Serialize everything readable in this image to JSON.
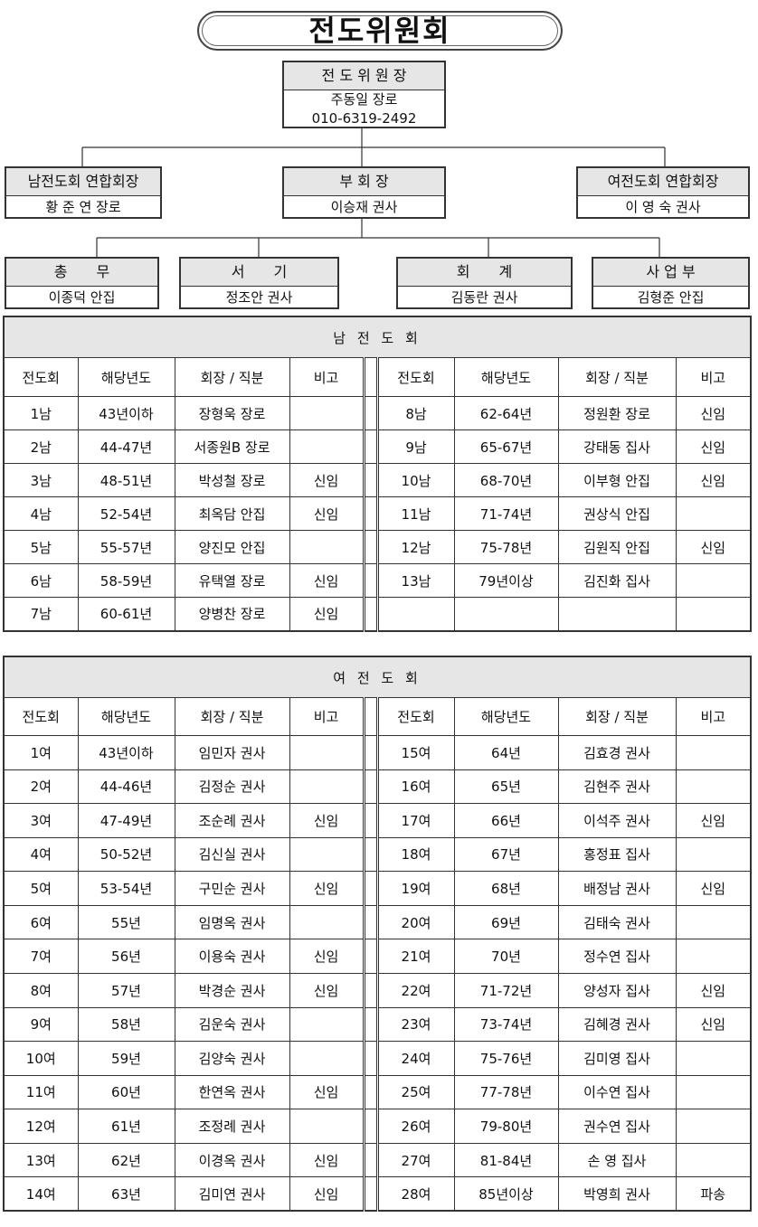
{
  "title": "전도위원회",
  "org": {
    "chair": {
      "role": "전 도 위 원 장",
      "name": "주동일 장로",
      "phone": "010-6319-2492"
    },
    "men_president": {
      "role": "남전도회 연합회장",
      "name": "황 준 연 장로"
    },
    "vice": {
      "role": "부 회 장",
      "name": "이승재 권사"
    },
    "women_president": {
      "role": "여전도회 연합회장",
      "name": "이 영 숙 권사"
    },
    "staff": [
      {
        "role": "총　　무",
        "name": "이종덕 안집"
      },
      {
        "role": "서　　기",
        "name": "정조안 권사"
      },
      {
        "role": "회　　계",
        "name": "김동란 권사"
      },
      {
        "role": "사 업 부",
        "name": "김형준 안집"
      }
    ]
  },
  "tables": [
    {
      "title": "남 전 도 회",
      "headers": [
        "전도회",
        "해당년도",
        "회장 / 직분",
        "비고"
      ],
      "rows": [
        {
          "group": "1남",
          "years": "43년이하",
          "name": "장형욱 장로"
        },
        {
          "group": "2남",
          "years": "44-47년",
          "name": "서종원B 장로"
        },
        {
          "group": "3남",
          "years": "48-51년",
          "name": "박성철 장로",
          "note": "신임"
        },
        {
          "group": "4남",
          "years": "52-54년",
          "name": "최옥담 안집",
          "note": "신임"
        },
        {
          "group": "5남",
          "years": "55-57년",
          "name": "양진모 안집"
        },
        {
          "group": "6남",
          "years": "58-59년",
          "name": "유택열 장로",
          "note": "신임"
        },
        {
          "group": "7남",
          "years": "60-61년",
          "name": "양병찬 장로",
          "note": "신임"
        },
        {
          "group": "8남",
          "years": "62-64년",
          "name": "정원환 장로",
          "note": "신임"
        },
        {
          "group": "9남",
          "years": "65-67년",
          "name": "강태동 집사",
          "note": "신임"
        },
        {
          "group": "10남",
          "years": "68-70년",
          "name": "이부형 안집",
          "note": "신임"
        },
        {
          "group": "11남",
          "years": "71-74년",
          "name": "권상식 안집"
        },
        {
          "group": "12남",
          "years": "75-78년",
          "name": "김원직 안집",
          "note": "신임"
        },
        {
          "group": "13남",
          "years": "79년이상",
          "name": "김진화 집사"
        }
      ]
    },
    {
      "title": "여 전 도 회",
      "headers": [
        "전도회",
        "해당년도",
        "회장 / 직분",
        "비고"
      ],
      "rows": [
        {
          "group": "1여",
          "years": "43년이하",
          "name": "임민자 권사"
        },
        {
          "group": "2여",
          "years": "44-46년",
          "name": "김정순 권사"
        },
        {
          "group": "3여",
          "years": "47-49년",
          "name": "조순례 권사",
          "note": "신임"
        },
        {
          "group": "4여",
          "years": "50-52년",
          "name": "김신실 권사"
        },
        {
          "group": "5여",
          "years": "53-54년",
          "name": "구민순 권사",
          "note": "신임"
        },
        {
          "group": "6여",
          "years": "55년",
          "name": "임명옥 권사"
        },
        {
          "group": "7여",
          "years": "56년",
          "name": "이용숙 권사",
          "note": "신임"
        },
        {
          "group": "8여",
          "years": "57년",
          "name": "박경순 권사",
          "note": "신임"
        },
        {
          "group": "9여",
          "years": "58년",
          "name": "김운숙 권사"
        },
        {
          "group": "10여",
          "years": "59년",
          "name": "김양숙 권사"
        },
        {
          "group": "11여",
          "years": "60년",
          "name": "한연옥 권사",
          "note": "신임"
        },
        {
          "group": "12여",
          "years": "61년",
          "name": "조정례 권사"
        },
        {
          "group": "13여",
          "years": "62년",
          "name": "이경옥 권사",
          "note": "신임"
        },
        {
          "group": "14여",
          "years": "63년",
          "name": "김미연 권사",
          "note": "신임"
        },
        {
          "group": "15여",
          "years": "64년",
          "name": "김효경 권사"
        },
        {
          "group": "16여",
          "years": "65년",
          "name": "김현주 권사"
        },
        {
          "group": "17여",
          "years": "66년",
          "name": "이석주 권사",
          "note": "신임"
        },
        {
          "group": "18여",
          "years": "67년",
          "name": "홍정표 집사"
        },
        {
          "group": "19여",
          "years": "68년",
          "name": "배정남 권사",
          "note": "신임"
        },
        {
          "group": "20여",
          "years": "69년",
          "name": "김태숙 권사"
        },
        {
          "group": "21여",
          "years": "70년",
          "name": "정수연 집사"
        },
        {
          "group": "22여",
          "years": "71-72년",
          "name": "양성자 집사",
          "note": "신임"
        },
        {
          "group": "23여",
          "years": "73-74년",
          "name": "김혜경 권사",
          "note": "신임"
        },
        {
          "group": "24여",
          "years": "75-76년",
          "name": "김미영 집사"
        },
        {
          "group": "25여",
          "years": "77-78년",
          "name": "이수연 집사"
        },
        {
          "group": "26여",
          "years": "79-80년",
          "name": "권수연 집사"
        },
        {
          "group": "27여",
          "years": "81-84년",
          "name": "손 영 집사"
        },
        {
          "group": "28여",
          "years": "85년이상",
          "name": "박영희 권사",
          "note": "파송"
        }
      ]
    }
  ]
}
